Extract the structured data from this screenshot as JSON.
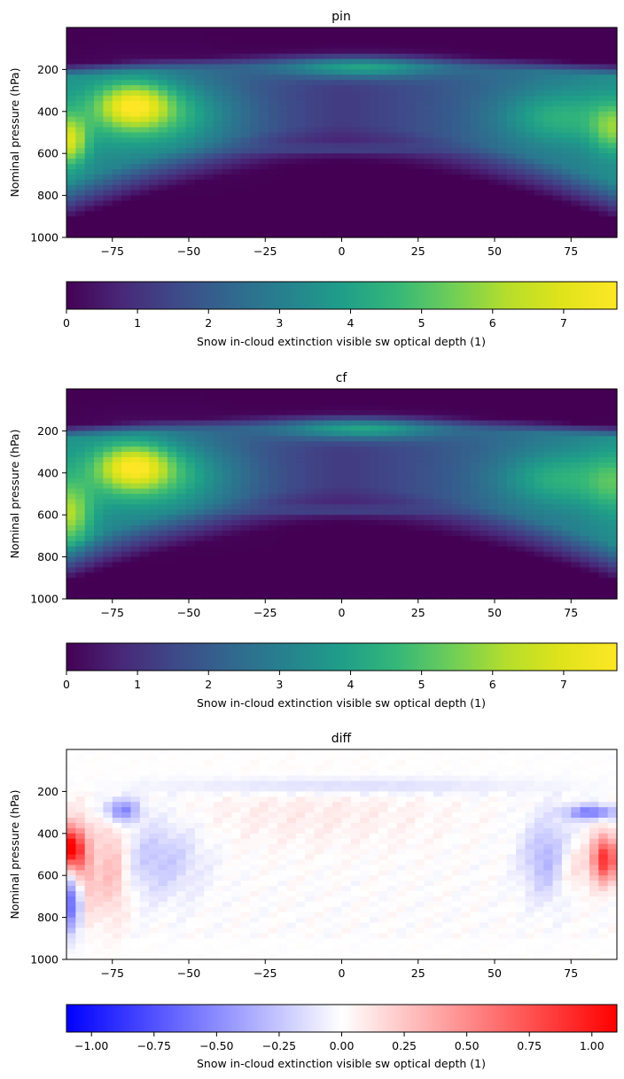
{
  "figure": {
    "panels": [
      "pin",
      "cf",
      "diff"
    ]
  },
  "chart_data": [
    {
      "type": "heatmap",
      "title": "pin",
      "xlabel": "",
      "ylabel": "Nominal pressure (hPa)",
      "xlim": [
        -90,
        90
      ],
      "ylim": [
        1000,
        0
      ],
      "x_ticks": [
        -75,
        -50,
        -25,
        0,
        25,
        50,
        75
      ],
      "y_ticks": [
        200,
        400,
        600,
        800,
        1000
      ],
      "colormap": "viridis",
      "color_range": [
        0,
        7.75
      ],
      "colorbar": {
        "label": "Snow in-cloud extinction visible sw optical depth (1)",
        "ticks": [
          0,
          1,
          2,
          3,
          4,
          5,
          6,
          7
        ],
        "orientation": "horizontal"
      },
      "features": [
        {
          "lat": -68,
          "pressure": 370,
          "value": 7.6
        },
        {
          "lat": -88,
          "pressure": 540,
          "value": 6.0
        },
        {
          "lat": 5,
          "pressure": 190,
          "value": 4.5
        },
        {
          "lat": 88,
          "pressure": 480,
          "value": 5.0
        },
        {
          "lat": 68,
          "pressure": 430,
          "value": 4.6
        }
      ]
    },
    {
      "type": "heatmap",
      "title": "cf",
      "xlabel": "",
      "ylabel": "Nominal pressure (hPa)",
      "xlim": [
        -90,
        90
      ],
      "ylim": [
        1000,
        0
      ],
      "x_ticks": [
        -75,
        -50,
        -25,
        0,
        25,
        50,
        75
      ],
      "y_ticks": [
        200,
        400,
        600,
        800,
        1000
      ],
      "colormap": "viridis",
      "color_range": [
        0,
        7.75
      ],
      "colorbar": {
        "label": "Snow in-cloud extinction visible sw optical depth (1)",
        "ticks": [
          0,
          1,
          2,
          3,
          4,
          5,
          6,
          7
        ],
        "orientation": "horizontal"
      },
      "features": [
        {
          "lat": -68,
          "pressure": 360,
          "value": 7.5
        },
        {
          "lat": -88,
          "pressure": 590,
          "value": 5.3
        },
        {
          "lat": 5,
          "pressure": 185,
          "value": 4.4
        },
        {
          "lat": 70,
          "pressure": 420,
          "value": 4.6
        }
      ]
    },
    {
      "type": "heatmap",
      "title": "diff",
      "xlabel": "",
      "ylabel": "Nominal pressure (hPa)",
      "xlim": [
        -90,
        90
      ],
      "ylim": [
        1000,
        0
      ],
      "x_ticks": [
        -75,
        -50,
        -25,
        0,
        25,
        50,
        75
      ],
      "y_ticks": [
        200,
        400,
        600,
        800,
        1000
      ],
      "colormap": "bwr",
      "color_range": [
        -1.1,
        1.1
      ],
      "colorbar": {
        "label": "Snow in-cloud extinction visible sw optical depth (1)",
        "ticks": [
          -1.0,
          -0.75,
          -0.5,
          -0.25,
          0.0,
          0.25,
          0.5,
          0.75,
          1.0
        ],
        "tick_labels": [
          "−1.00",
          "−0.75",
          "−0.50",
          "−0.25",
          "0.00",
          "0.25",
          "0.50",
          "0.75",
          "1.00"
        ],
        "orientation": "horizontal"
      },
      "features": [
        {
          "lat": -88,
          "pressure": 470,
          "value": 1.0
        },
        {
          "lat": -87,
          "pressure": 700,
          "value": -0.7
        },
        {
          "lat": -72,
          "pressure": 290,
          "value": -0.5
        },
        {
          "lat": 85,
          "pressure": 520,
          "value": 0.9
        },
        {
          "lat": 82,
          "pressure": 300,
          "value": -0.6
        },
        {
          "lat": 68,
          "pressure": 520,
          "value": -0.35
        }
      ]
    }
  ]
}
